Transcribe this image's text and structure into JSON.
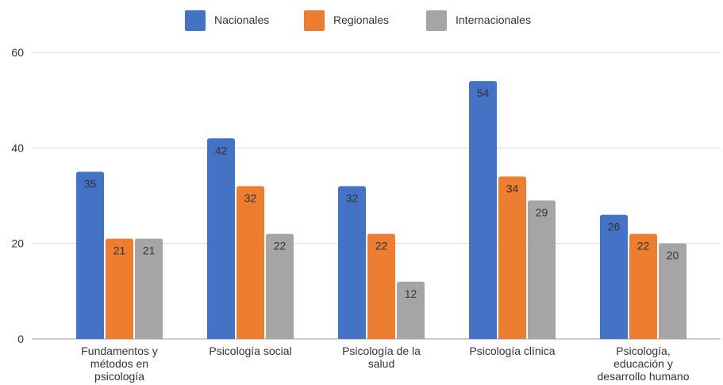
{
  "chart_data": {
    "type": "bar",
    "categories": [
      [
        "Fundamentos y",
        "métodos en",
        "psicología"
      ],
      [
        "Psicología social"
      ],
      [
        "Psicología de la",
        "salud"
      ],
      [
        "Psicología clínica"
      ],
      [
        "Psicología,",
        "educación y",
        "desarrollo humano"
      ]
    ],
    "series": [
      {
        "name": "Nacionales",
        "color": "#4472c4",
        "values": [
          35,
          42,
          32,
          54,
          26
        ]
      },
      {
        "name": "Regionales",
        "color": "#ed7d31",
        "values": [
          21,
          32,
          22,
          34,
          22
        ]
      },
      {
        "name": "Internacionales",
        "color": "#a5a5a5",
        "values": [
          21,
          22,
          12,
          29,
          20
        ]
      }
    ],
    "y_ticks": [
      "0",
      "20",
      "40",
      "60"
    ],
    "ylim": [
      0,
      60
    ],
    "grid": true,
    "legend_position": "top-center",
    "data_labels": true
  }
}
